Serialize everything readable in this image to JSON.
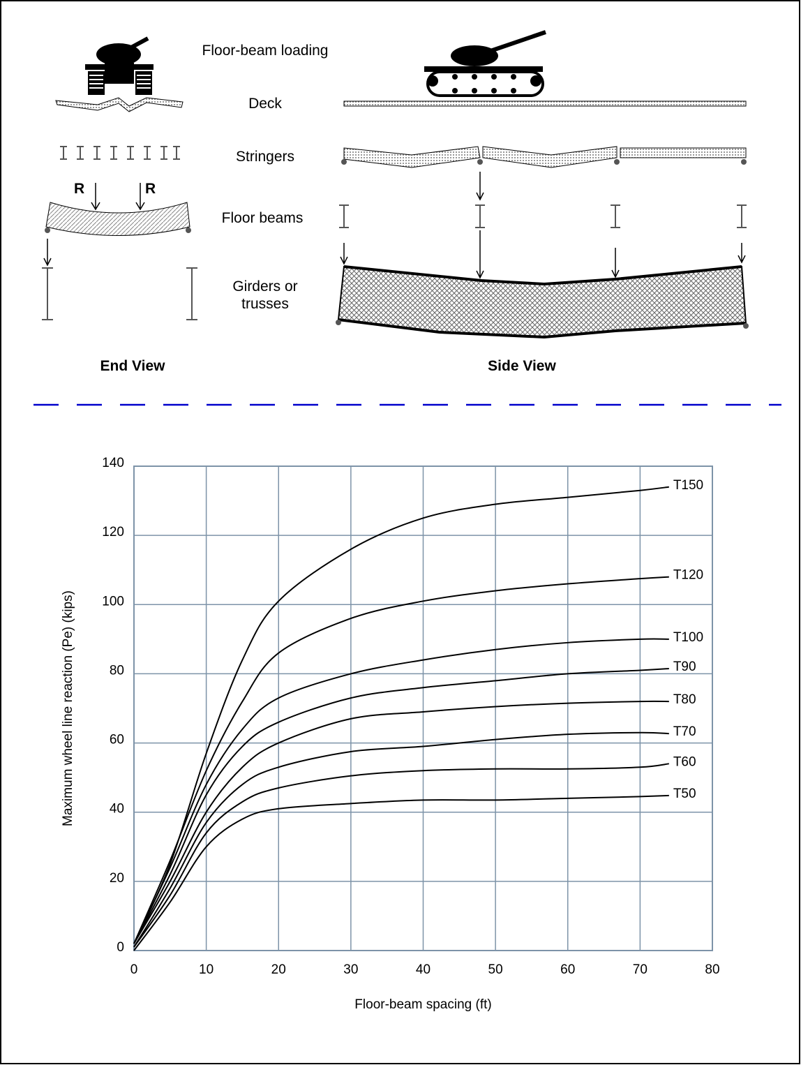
{
  "diagram": {
    "loading": "Floor-beam loading",
    "deck": "Deck",
    "stringers": "Stringers",
    "floor_beams": "Floor beams",
    "girders": "Girders or trusses",
    "reaction_left": "R",
    "reaction_right": "R",
    "end_view": "End View",
    "side_view": "Side View"
  },
  "chart_data": {
    "type": "line",
    "x_label": "Floor-beam spacing (ft)",
    "y_label": "Maximum wheel line reaction (Pe) (kips)",
    "x": [
      0,
      5,
      10,
      15,
      20,
      30,
      40,
      50,
      60,
      70,
      74
    ],
    "series": [
      {
        "name": "T150",
        "color": "#000000",
        "values": [
          2,
          25,
          57,
          84,
          101,
          116,
          125,
          129,
          131,
          133,
          134
        ]
      },
      {
        "name": "T120",
        "color": "#000000",
        "values": [
          2,
          26,
          52,
          72,
          86,
          96,
          101,
          104,
          106,
          107.5,
          108
        ]
      },
      {
        "name": "T100",
        "color": "#000000",
        "values": [
          2,
          24,
          48,
          64,
          73,
          80,
          84,
          87,
          89,
          90,
          90
        ]
      },
      {
        "name": "T90",
        "color": "#000000",
        "values": [
          2,
          22,
          45,
          59,
          66,
          73,
          76,
          78,
          80,
          81,
          81.5
        ]
      },
      {
        "name": "T80",
        "color": "#000000",
        "values": [
          2,
          20,
          40,
          53,
          60,
          67,
          69,
          70.5,
          71.5,
          72,
          72
        ]
      },
      {
        "name": "T70",
        "color": "#000000",
        "values": [
          1,
          18,
          37,
          48,
          53,
          57.5,
          59,
          61,
          62.5,
          63,
          62.7
        ]
      },
      {
        "name": "T60",
        "color": "#000000",
        "values": [
          1,
          16,
          34,
          43,
          47,
          50.5,
          52,
          52.5,
          52.5,
          53,
          54
        ]
      },
      {
        "name": "T50",
        "color": "#000000",
        "values": [
          0,
          14,
          30,
          38,
          41,
          42.5,
          43.5,
          43.5,
          44,
          44.5,
          44.8
        ]
      }
    ],
    "xlim": [
      0,
      80
    ],
    "xticks": [
      0,
      10,
      20,
      30,
      40,
      50,
      60,
      70,
      80
    ],
    "ylim": [
      0,
      140
    ],
    "yticks": [
      0,
      20,
      40,
      60,
      80,
      100,
      120,
      140
    ],
    "grid": true,
    "grid_color": "#7d93a8"
  }
}
